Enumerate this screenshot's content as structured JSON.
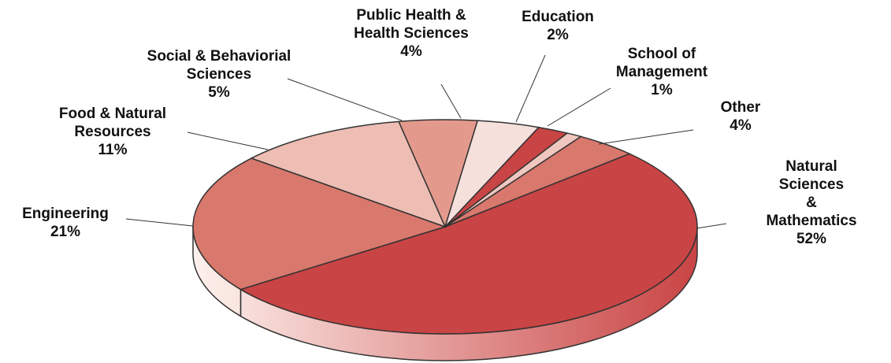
{
  "chart_data": {
    "type": "pie",
    "categories": [
      "Natural Sciences\n& Mathematics",
      "Engineering",
      "Food & Natural\nResources",
      "Social & Behaviorial\nSciences",
      "Public Health &\nHealth Sciences",
      "Education",
      "School of\nManagement",
      "Other"
    ],
    "values": [
      52,
      21,
      11,
      5,
      4,
      2,
      1,
      4
    ],
    "value_labels": [
      "52%",
      "21%",
      "11%",
      "5%",
      "4%",
      "2%",
      "1%",
      "4%"
    ],
    "colors": [
      "#c94444",
      "#d9786c",
      "#eebdb3",
      "#e39a8c",
      "#f6e0dc",
      "#c94444",
      "#f0c7bf",
      "#d9786c"
    ]
  }
}
